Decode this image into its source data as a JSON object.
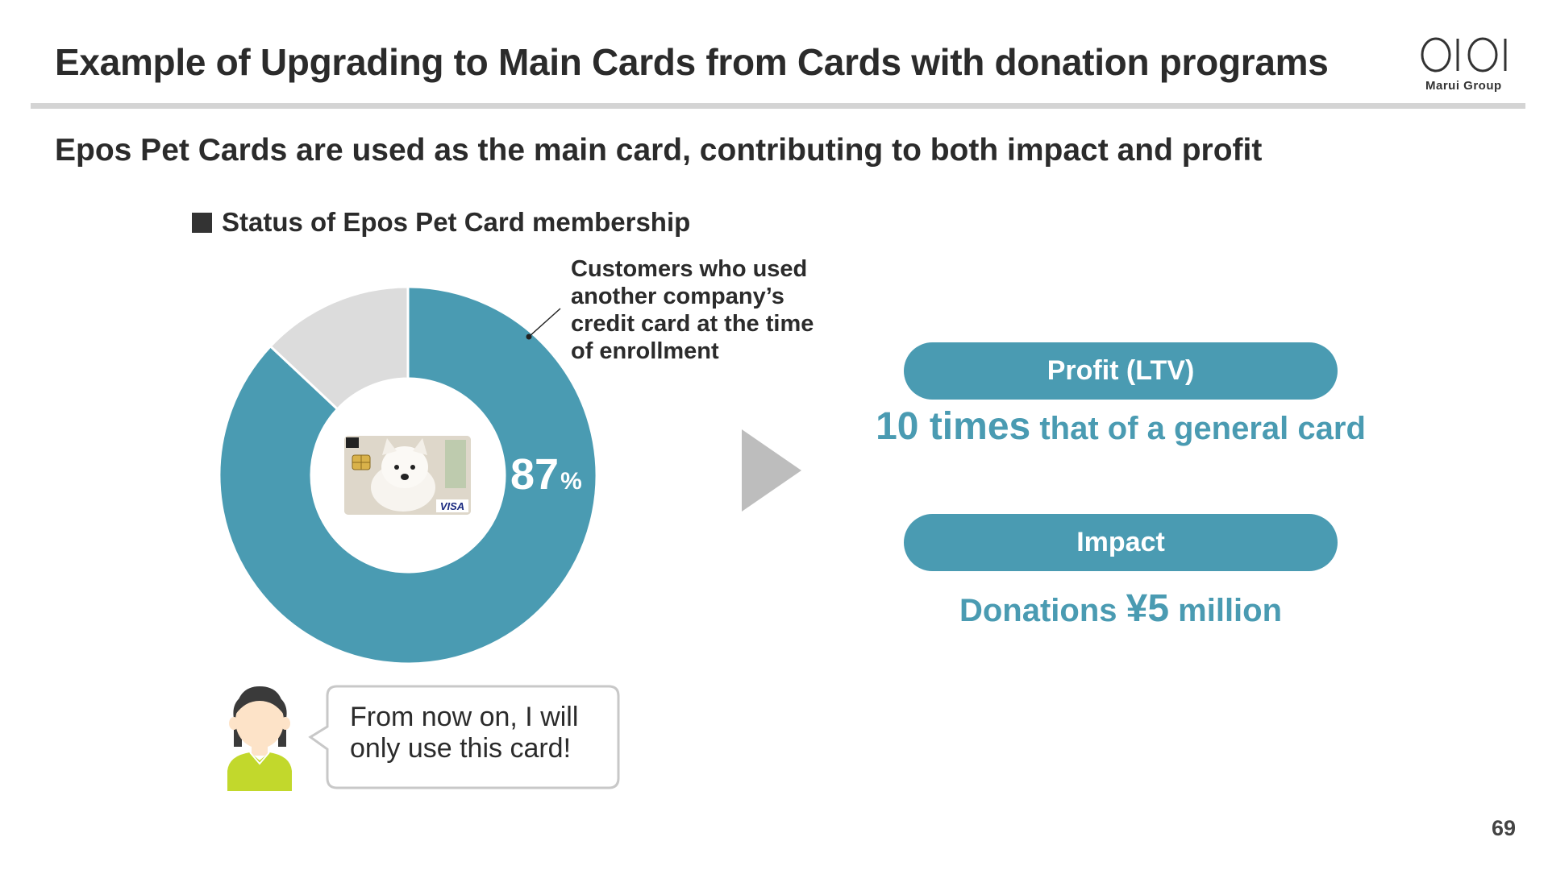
{
  "title": "Example of Upgrading to Main Cards from Cards with donation programs",
  "logo": {
    "text": "Marui Group"
  },
  "subtitle": "Epos Pet Cards are used as the main card, contributing to both impact and profit",
  "chart_heading": "Status of Epos Pet Card membership",
  "chart_data": {
    "type": "pie",
    "title": "Status of Epos Pet Card membership",
    "slices": [
      {
        "label": "Customers who used another company’s credit card at the time of enrollment",
        "value": 87,
        "color": "#4a9bb2"
      },
      {
        "label": "",
        "value": 13,
        "color": "#dcdcdc"
      }
    ],
    "data_label": {
      "value": "87",
      "unit": "%"
    },
    "donut": true
  },
  "callout": "Customers who used another company’s credit card at the time of enrollment",
  "card": {
    "brand": "VISA"
  },
  "profit": {
    "label": "Profit (LTV)",
    "value": "10 times",
    "suffix": " that of a general card"
  },
  "impact": {
    "label": "Impact",
    "prefix": "Donations ",
    "value": "¥5",
    "suffix": " million"
  },
  "speech": "From now on, I will only use this card!",
  "page_number": "69",
  "colors": {
    "accent": "#4a9bb2",
    "secondary": "#dcdcdc",
    "arrow": "#bdbdbd",
    "person_shirt": "#c2d82c"
  }
}
